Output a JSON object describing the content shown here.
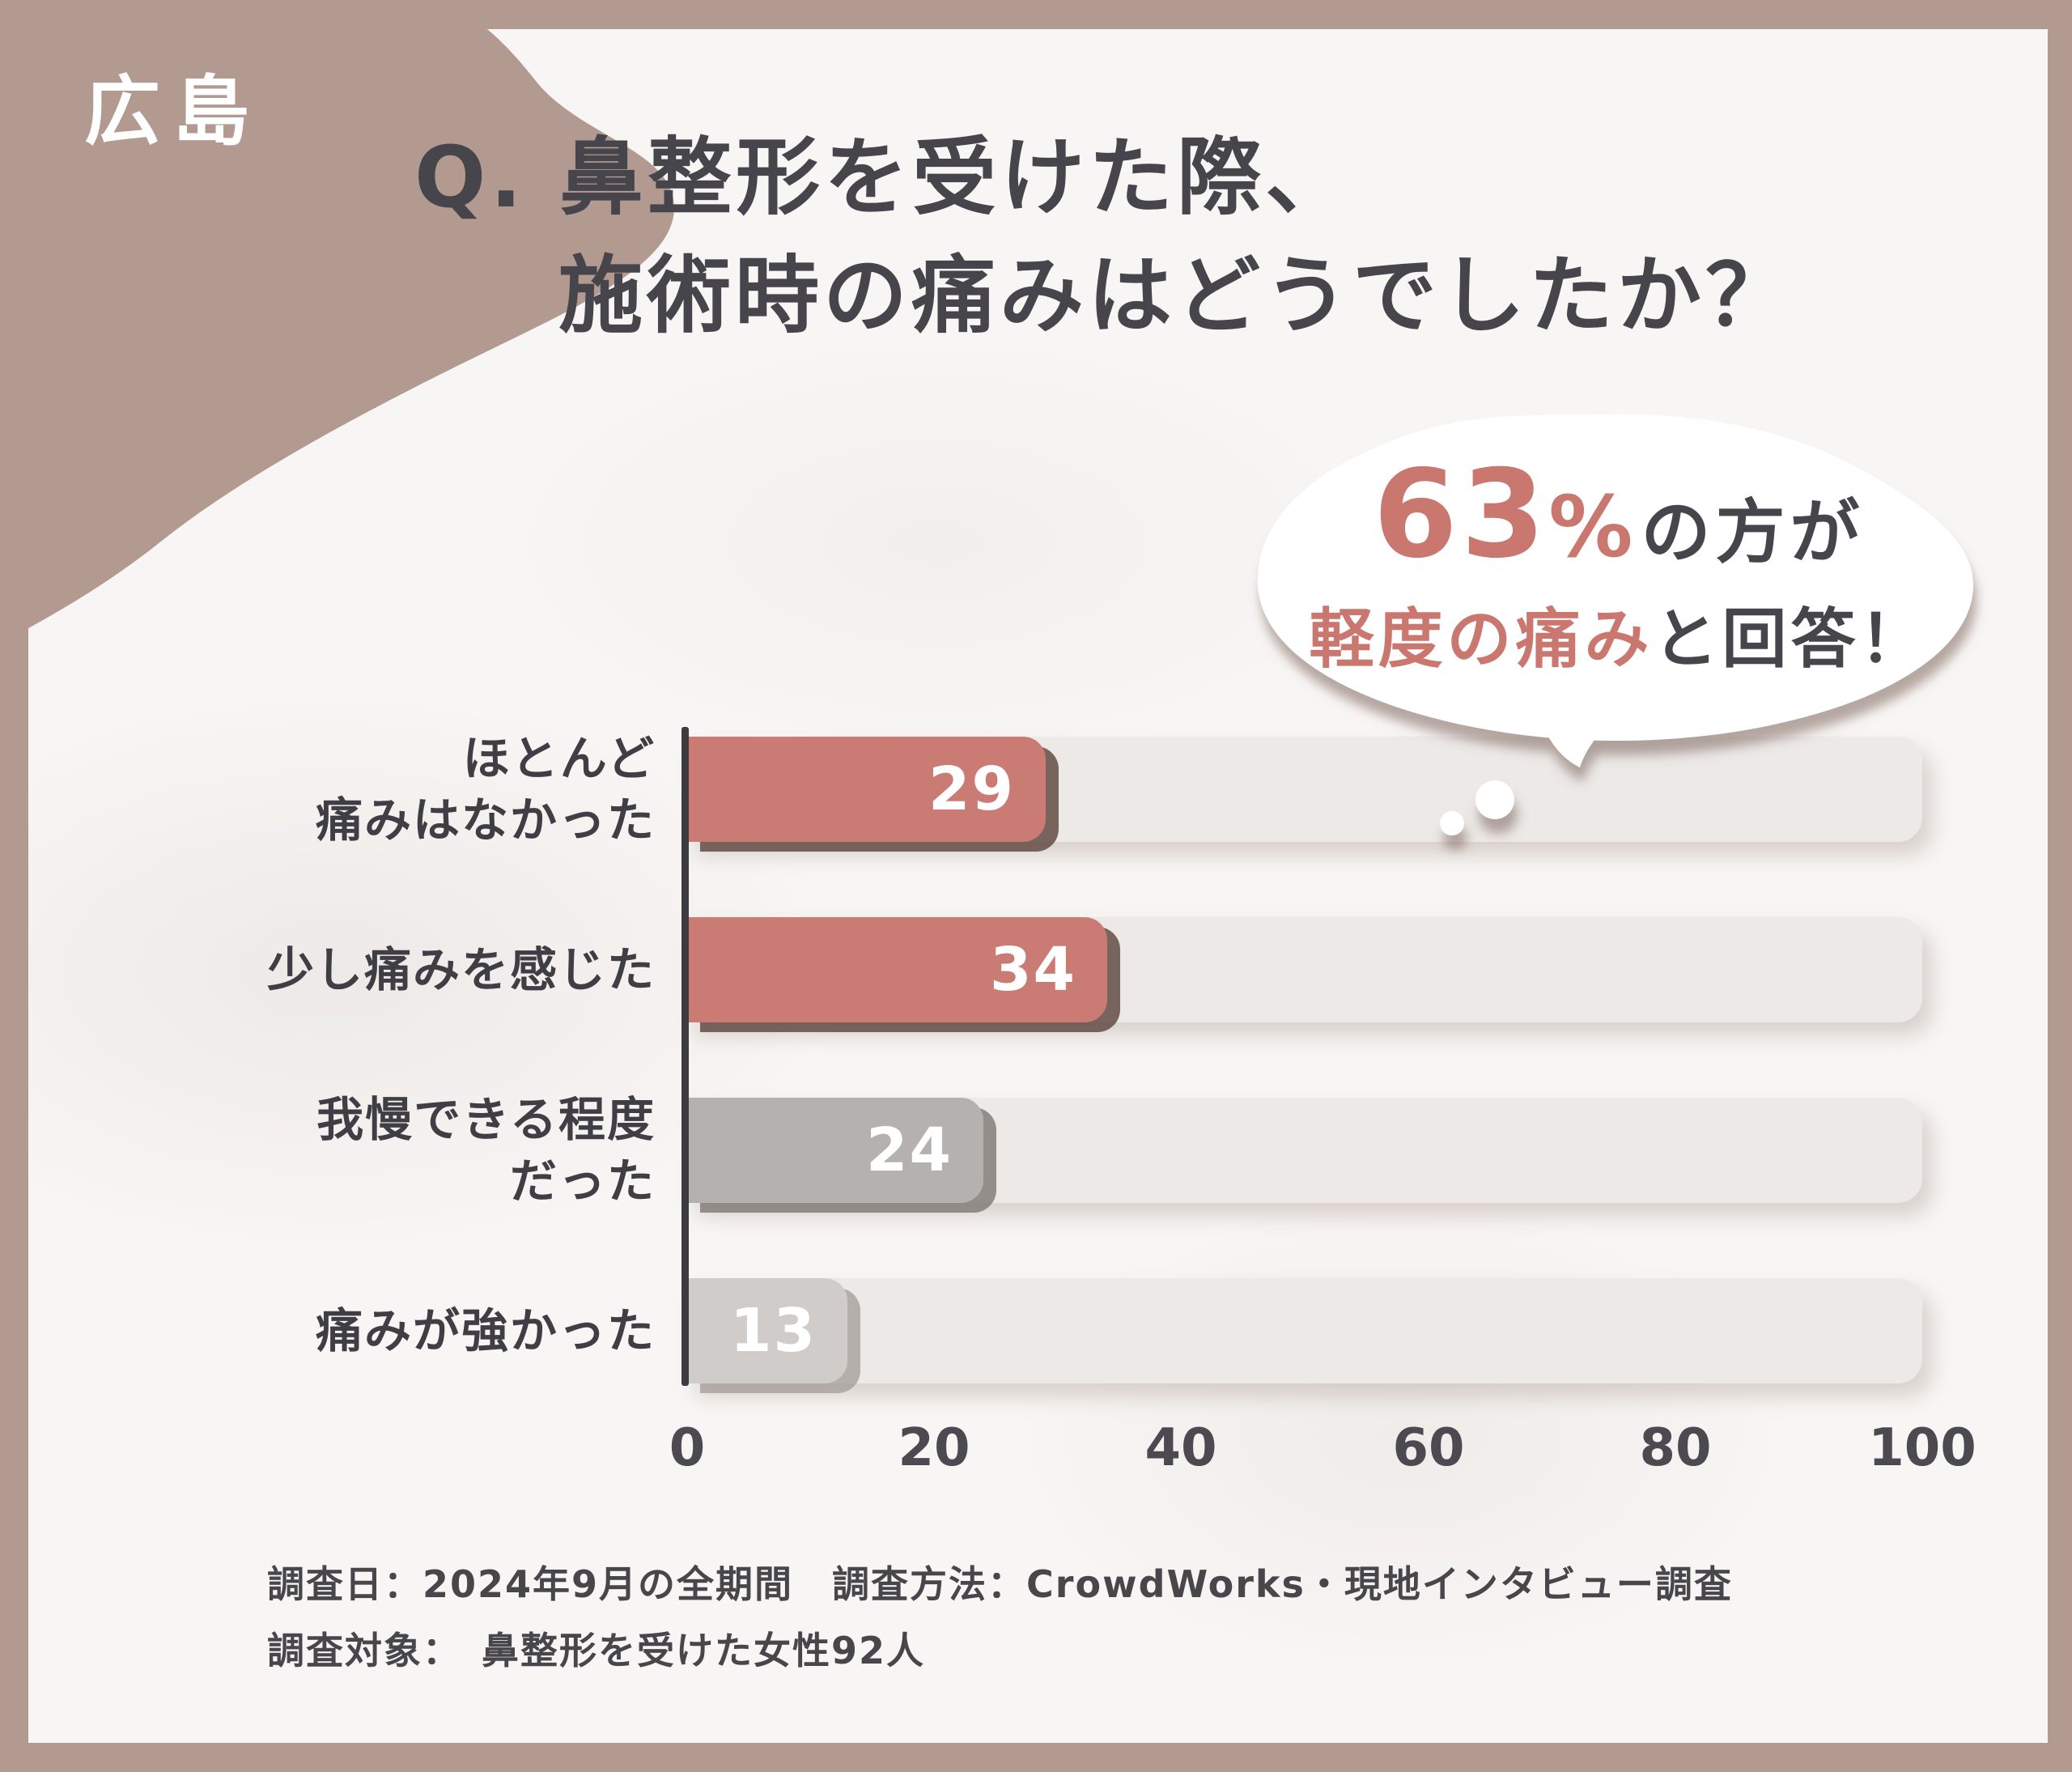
{
  "badge": {
    "label": "広島"
  },
  "title": {
    "line1": "Q. 鼻整形を受けた際、",
    "line2": "施術時の痛みはどうでしたか？"
  },
  "callout": {
    "percent": "63",
    "percent_sign": "%",
    "after_percent": "の方が",
    "highlight": "軽度の痛み",
    "after_highlight": "と回答！"
  },
  "chart_data": {
    "type": "bar",
    "orientation": "horizontal",
    "categories": [
      "ほとんど痛みはなかった",
      "少し痛みを感じた",
      "我慢できる程度だった",
      "痛みが強かった"
    ],
    "values": [
      29,
      34,
      24,
      13
    ],
    "xlim": [
      0,
      100
    ],
    "x_ticks": [
      "0",
      "20",
      "40",
      "60",
      "80",
      "100"
    ],
    "grid": false,
    "legend": "none",
    "rows": [
      {
        "label_lines": [
          "ほとんど",
          "痛みはなかった"
        ],
        "value": "29",
        "bar_color": "#c97b74",
        "shadow_color": "rgba(99,76,68,0.85)",
        "value_color": "#ffffff"
      },
      {
        "label_lines": [
          "少し痛みを感じた"
        ],
        "value": "34",
        "bar_color": "#c97b74",
        "shadow_color": "rgba(99,76,68,0.85)",
        "value_color": "#ffffff"
      },
      {
        "label_lines": [
          "我慢できる程度",
          "だった"
        ],
        "value": "24",
        "bar_color": "#b5b1af",
        "shadow_color": "rgba(126,119,115,0.8)",
        "value_color": "#ffffff"
      },
      {
        "label_lines": [
          "痛みが強かった"
        ],
        "value": "13",
        "bar_color": "#cfccca",
        "shadow_color": "rgba(163,155,151,0.75)",
        "value_color": "#ffffff"
      }
    ]
  },
  "footer": {
    "line1": "調査日：2024年9月の全期間　調査方法：CrowdWorks・現地インタビュー調査",
    "line2": "調査対象：　鼻整形を受けた女性92人"
  },
  "colors": {
    "frame": "#b39a91",
    "content_bg": "#f8f6f4",
    "accent": "#c9776f",
    "bar_red": "#c97b74",
    "bar_gray_dark": "#b5b1af",
    "bar_gray_light": "#cfccca",
    "track": "#ece9e7",
    "ink": "#46454b",
    "axis": "#3c3b40",
    "bubble_fill": "#ffffff"
  }
}
